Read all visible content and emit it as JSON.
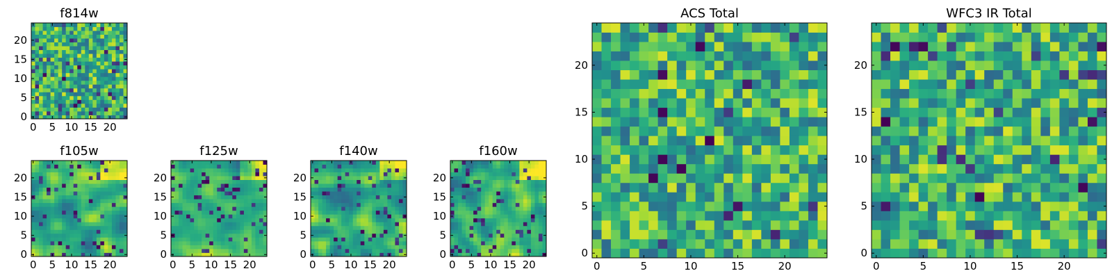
{
  "chart_data": [
    {
      "type": "heatmap",
      "title": "f814w",
      "colormap": "viridis",
      "grid_size": 25,
      "xticks": [
        0,
        5,
        10,
        15,
        20
      ],
      "yticks": [
        0,
        5,
        10,
        15,
        20
      ],
      "xlim": [
        -0.5,
        24.5
      ],
      "ylim": [
        -0.5,
        24.5
      ],
      "seed": 814,
      "smooth": 0,
      "low_threshold": 0.93,
      "notes": "pixel-level noise, mostly green-yellow"
    },
    {
      "type": "heatmap",
      "title": "f105w",
      "colormap": "viridis",
      "grid_size": 25,
      "xticks": [
        0,
        5,
        10,
        15,
        20
      ],
      "yticks": [
        0,
        5,
        10,
        15,
        20
      ],
      "xlim": [
        -0.5,
        24.5
      ],
      "ylim": [
        -0.5,
        24.5
      ],
      "seed": 105,
      "smooth": 2,
      "low_threshold": 0.92,
      "notes": "smoothed noise with bright yellow top-right"
    },
    {
      "type": "heatmap",
      "title": "f125w",
      "colormap": "viridis",
      "grid_size": 25,
      "xticks": [
        0,
        5,
        10,
        15,
        20
      ],
      "yticks": [
        0,
        5,
        10,
        15,
        20
      ],
      "xlim": [
        -0.5,
        24.5
      ],
      "ylim": [
        -0.5,
        24.5
      ],
      "seed": 125,
      "smooth": 2,
      "low_threshold": 0.92,
      "notes": "smoothed noise with bright yellow top-right"
    },
    {
      "type": "heatmap",
      "title": "f140w",
      "colormap": "viridis",
      "grid_size": 25,
      "xticks": [
        0,
        5,
        10,
        15,
        20
      ],
      "yticks": [
        0,
        5,
        10,
        15,
        20
      ],
      "xlim": [
        -0.5,
        24.5
      ],
      "ylim": [
        -0.5,
        24.5
      ],
      "seed": 140,
      "smooth": 2,
      "low_threshold": 0.92,
      "notes": "smoothed noise with bright yellow top-right"
    },
    {
      "type": "heatmap",
      "title": "f160w",
      "colormap": "viridis",
      "grid_size": 25,
      "xticks": [
        0,
        5,
        10,
        15,
        20
      ],
      "yticks": [
        0,
        5,
        10,
        15,
        20
      ],
      "xlim": [
        -0.5,
        24.5
      ],
      "ylim": [
        -0.5,
        24.5
      ],
      "seed": 160,
      "smooth": 2,
      "low_threshold": 0.92,
      "notes": "smoothed noise with bright yellow top-right"
    },
    {
      "type": "heatmap",
      "title": "ACS Total",
      "colormap": "viridis",
      "grid_size": 25,
      "xticks": [
        0,
        5,
        10,
        15,
        20
      ],
      "yticks": [
        0,
        5,
        10,
        15,
        20
      ],
      "xlim": [
        -0.5,
        24.5
      ],
      "ylim": [
        -0.5,
        24.5
      ],
      "seed": 7,
      "smooth": 0,
      "low_threshold": 0.96,
      "notes": "pixel-level noise with scattered dark pixels"
    },
    {
      "type": "heatmap",
      "title": "WFC3 IR Total",
      "colormap": "viridis",
      "grid_size": 25,
      "xticks": [
        0,
        5,
        10,
        15,
        20
      ],
      "yticks": [
        0,
        5,
        10,
        15,
        20
      ],
      "xlim": [
        -0.5,
        24.5
      ],
      "ylim": [
        -0.5,
        24.5
      ],
      "seed": 3,
      "smooth": 0,
      "low_threshold": 0.965,
      "notes": "pixel-level noise with scattered dark pixels"
    }
  ]
}
